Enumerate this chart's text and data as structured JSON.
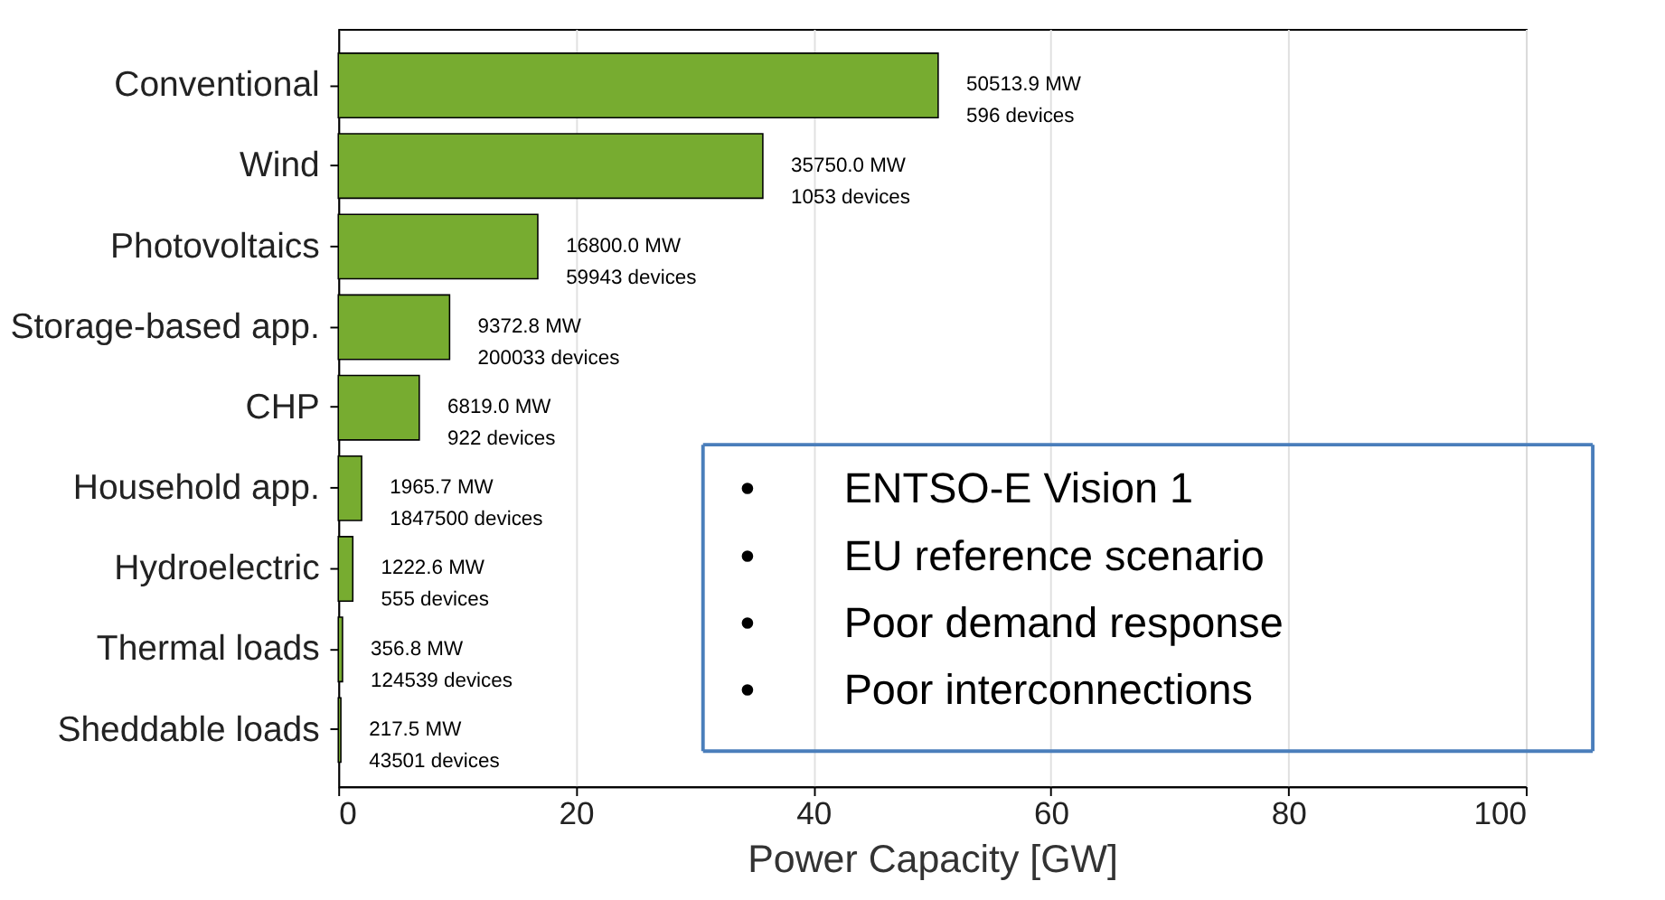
{
  "chart_data": {
    "type": "bar",
    "orientation": "horizontal",
    "xlabel": "Power Capacity [GW]",
    "categories": [
      "Conventional",
      "Wind",
      "Photovoltaics",
      "Storage-based app.",
      "CHP",
      "Household app.",
      "Hydroelectric",
      "Thermal loads",
      "Sheddable loads"
    ],
    "values": [
      50.5139,
      35.75,
      16.8,
      9.3728,
      6.819,
      1.9657,
      1.2226,
      0.3568,
      0.2175
    ],
    "color": "#77ac30",
    "xlim": [
      0,
      100
    ],
    "xticks": [
      0,
      20,
      40,
      60,
      80,
      100
    ],
    "grid": "x",
    "annotations": [
      {
        "text": "50513.9 MW\n596 devices",
        "x": 50.5139,
        "y": "Conventional"
      },
      {
        "text": "35750.0 MW\n1053 devices",
        "x": 35.75,
        "y": "Wind"
      },
      {
        "text": "16800.0 MW\n59943 devices",
        "x": 16.8,
        "y": "Photovoltaics"
      },
      {
        "text": "9372.8 MW\n200033 devices",
        "x": 9.3728,
        "y": "Storage-based app."
      },
      {
        "text": "6819.0 MW\n922 devices",
        "x": 6.819,
        "y": "CHP"
      },
      {
        "text": "1965.7 MW\n1847500 devices",
        "x": 1.9657,
        "y": "Household app."
      },
      {
        "text": "1222.6 MW\n555 devices",
        "x": 1.2226,
        "y": "Hydroelectric"
      },
      {
        "text": "356.8 MW\n124539 devices",
        "x": 0.3568,
        "y": "Thermal loads"
      },
      {
        "text": "217.5 MW\n43501 devices",
        "x": 0.2175,
        "y": "Sheddable loads"
      },
      "• ENTSO-E Vision 1",
      "• EU reference scenario",
      "• Poor demand response",
      "• Poor interconnections"
    ]
  }
}
